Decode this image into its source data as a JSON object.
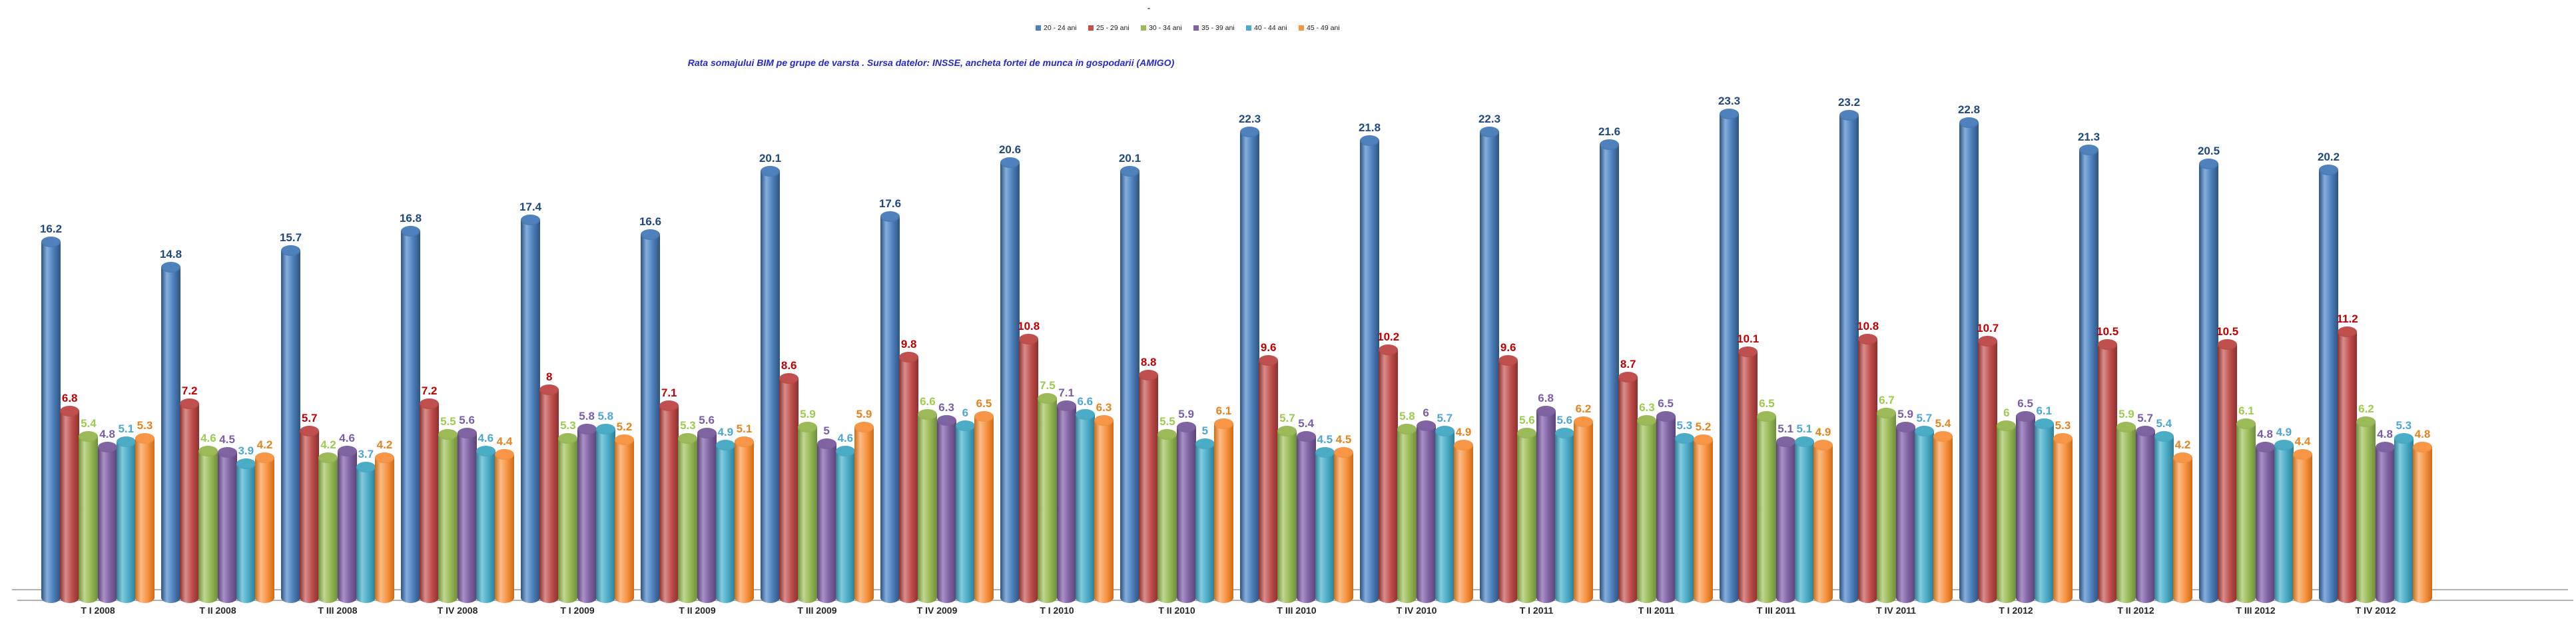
{
  "chart_data": {
    "type": "bar",
    "subtype": "3d-cylinder-column",
    "title": "-",
    "title_color": "#4d4d4d",
    "annotation": "Rata somajului BIM pe grupe de varsta . Sursa datelor: INSSE, ancheta fortei de munca in gospodarii (AMIGO)",
    "annotation_color": "#2727CE",
    "legend_position": "top-center",
    "grid": false,
    "value_labels": true,
    "ylim": [
      0,
      25
    ],
    "axis_line_color": "#b3b3b3",
    "category_label_color": "#262626",
    "categories": [
      "T I 2008",
      "T II 2008",
      "T III 2008",
      "T IV 2008",
      "T I 2009",
      "T II 2009",
      "T III 2009",
      "T IV 2009",
      "T I 2010",
      "T II 2010",
      "T III 2010",
      "T IV 2010",
      "T I 2011",
      "T II 2011",
      "T III 2011",
      "T IV 2011",
      "T I 2012",
      "T II 2012",
      "T III 2012",
      "T IV 2012"
    ],
    "series": [
      {
        "name": "20 - 24 ani",
        "color": "#4F81BD",
        "color_dark": "#2D5380",
        "color_light": "#86AEDC",
        "cap_color": "#3C689B",
        "label_color": "#1F497D",
        "values": [
          16.2,
          14.8,
          15.7,
          16.8,
          17.4,
          16.6,
          20.1,
          17.6,
          20.6,
          20.1,
          22.3,
          21.8,
          22.3,
          21.6,
          23.3,
          23.2,
          22.8,
          21.3,
          20.5,
          20.2
        ]
      },
      {
        "name": "25 - 29 ani",
        "color": "#C0504D",
        "color_dark": "#8E2E2C",
        "color_light": "#D88E8C",
        "cap_color": "#A83F3D",
        "label_color": "#C00000",
        "values": [
          6.8,
          7.2,
          5.7,
          7.2,
          8,
          7.1,
          8.6,
          9.8,
          10.8,
          8.8,
          9.6,
          10.2,
          9.6,
          8.7,
          10.1,
          10.8,
          10.7,
          10.5,
          10.5,
          11.2
        ]
      },
      {
        "name": "30 - 34 ani",
        "color": "#9BBB59",
        "color_dark": "#6E8F3A",
        "color_light": "#C0D692",
        "cap_color": "#85A44B",
        "label_color": "#9BCB4F",
        "values": [
          5.4,
          4.6,
          4.2,
          5.5,
          5.3,
          5.3,
          5.9,
          6.6,
          7.5,
          5.5,
          5.7,
          5.8,
          5.6,
          6.3,
          6.5,
          6.7,
          6,
          5.9,
          6.1,
          6.2
        ]
      },
      {
        "name": "35 - 39 ani",
        "color": "#8064A2",
        "color_dark": "#5B4378",
        "color_light": "#A991C8",
        "cap_color": "#6F5590",
        "label_color": "#7A5DA8",
        "values": [
          4.8,
          4.5,
          4.6,
          5.6,
          5.8,
          5.6,
          5,
          6.3,
          7.1,
          5.9,
          5.4,
          6,
          6.8,
          6.5,
          5.1,
          5.9,
          6.5,
          5.7,
          4.8,
          4.8
        ]
      },
      {
        "name": "40 - 44 ani",
        "color": "#4BACC6",
        "color_dark": "#2E7F96",
        "color_light": "#83CBDD",
        "cap_color": "#3E98B1",
        "label_color": "#4DA6D6",
        "values": [
          5.1,
          3.9,
          3.7,
          4.6,
          5.8,
          4.9,
          4.6,
          6,
          6.6,
          5,
          4.5,
          5.7,
          5.6,
          5.3,
          5.1,
          5.7,
          6.1,
          5.4,
          4.9,
          5.3
        ]
      },
      {
        "name": "45 - 49 ani",
        "color": "#F79646",
        "color_dark": "#D06B14",
        "color_light": "#FBBC88",
        "cap_color": "#E8872F",
        "label_color": "#E8821D",
        "values": [
          5.3,
          4.2,
          4.2,
          4.4,
          5.2,
          5.1,
          5.9,
          6.5,
          6.3,
          6.1,
          4.5,
          4.9,
          6.2,
          5.2,
          4.9,
          5.4,
          5.3,
          4.2,
          4.4,
          4.8
        ]
      }
    ]
  }
}
